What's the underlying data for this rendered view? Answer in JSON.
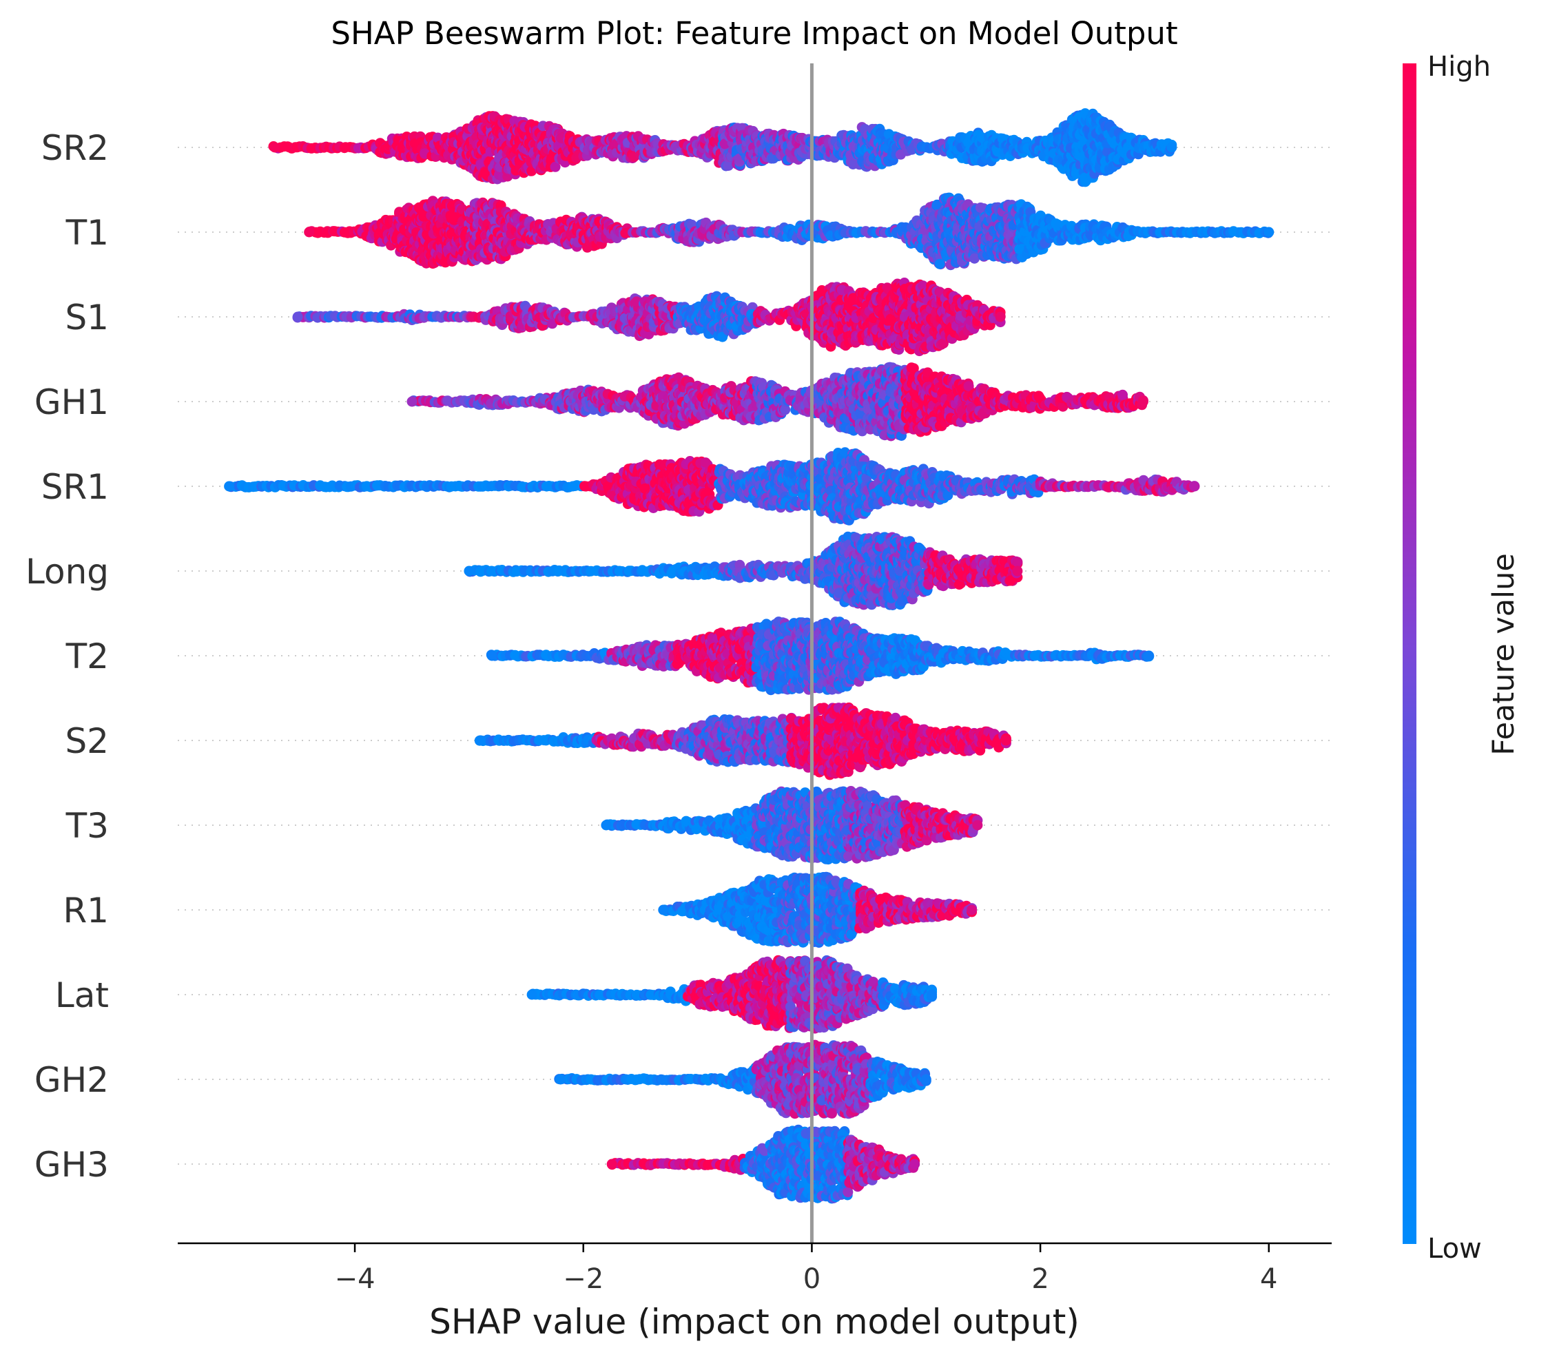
{
  "chart_data": {
    "type": "scatter",
    "title": "SHAP Beeswarm Plot: Feature Impact on Model Output",
    "xlabel": "SHAP value (impact on model output)",
    "ylabel": "",
    "xlim": [
      -5.55,
      4.55
    ],
    "x_ticks": [
      {
        "value": -4,
        "label": "−4"
      },
      {
        "value": -2,
        "label": "−2"
      },
      {
        "value": 0,
        "label": "0"
      },
      {
        "value": 2,
        "label": "2"
      },
      {
        "value": 4,
        "label": "4"
      }
    ],
    "grid": false,
    "colorbar": {
      "label": "Feature value",
      "high_label": "High",
      "low_label": "Low",
      "high_color": "#ff0052",
      "low_color": "#008bfb"
    },
    "zero_line_color": "#999999",
    "features": [
      {
        "name": "SR2",
        "min": -4.7,
        "max": 3.15,
        "segments": [
          {
            "from": -4.7,
            "to": -3.3,
            "value": 0.97
          },
          {
            "from": -3.3,
            "to": -2.0,
            "value": 0.88
          },
          {
            "from": -2.0,
            "to": -0.8,
            "value": 0.7
          },
          {
            "from": -0.8,
            "to": 0.2,
            "value": 0.5
          },
          {
            "from": 0.2,
            "to": 1.2,
            "value": 0.3
          },
          {
            "from": 1.2,
            "to": 3.15,
            "value": 0.04
          }
        ],
        "peaks": [
          [
            -4.6,
            0.02
          ],
          [
            -3.5,
            0.35
          ],
          [
            -2.8,
            0.9
          ],
          [
            -2.3,
            0.55
          ],
          [
            -1.6,
            0.35
          ],
          [
            -0.7,
            0.55
          ],
          [
            -0.2,
            0.35
          ],
          [
            0.5,
            0.6
          ],
          [
            1.5,
            0.45
          ],
          [
            2.4,
            1.0
          ],
          [
            3.0,
            0.15
          ]
        ]
      },
      {
        "name": "T1",
        "min": -4.4,
        "max": 4.0,
        "segments": [
          {
            "from": -4.4,
            "to": -3.0,
            "value": 0.96
          },
          {
            "from": -3.0,
            "to": -1.5,
            "value": 0.8
          },
          {
            "from": -1.5,
            "to": -0.5,
            "value": 0.55
          },
          {
            "from": -0.5,
            "to": 0.5,
            "value": 0.25
          },
          {
            "from": 0.5,
            "to": 1.8,
            "value": 0.35
          },
          {
            "from": 1.8,
            "to": 4.0,
            "value": 0.05
          }
        ],
        "peaks": [
          [
            -4.3,
            0.05
          ],
          [
            -3.6,
            0.3
          ],
          [
            -3.3,
            0.75
          ],
          [
            -2.8,
            0.8
          ],
          [
            -2.0,
            0.45
          ],
          [
            -1.0,
            0.3
          ],
          [
            0.0,
            0.25
          ],
          [
            1.2,
            1.0
          ],
          [
            1.8,
            0.8
          ],
          [
            2.5,
            0.25
          ],
          [
            3.9,
            0.05
          ]
        ]
      },
      {
        "name": "S1",
        "min": -4.5,
        "max": 1.65,
        "segments": [
          {
            "from": -4.5,
            "to": -3.0,
            "value": 0.45
          },
          {
            "from": -3.0,
            "to": -1.2,
            "value": 0.7
          },
          {
            "from": -1.2,
            "to": -0.5,
            "value": 0.3
          },
          {
            "from": -0.5,
            "to": 0.4,
            "value": 0.9
          },
          {
            "from": 0.4,
            "to": 1.65,
            "value": 0.92
          }
        ],
        "peaks": [
          [
            -4.4,
            0.03
          ],
          [
            -3.5,
            0.1
          ],
          [
            -2.5,
            0.35
          ],
          [
            -1.5,
            0.55
          ],
          [
            -0.8,
            0.6
          ],
          [
            0.2,
            0.85
          ],
          [
            0.8,
            1.0
          ],
          [
            1.2,
            0.5
          ],
          [
            1.6,
            0.1
          ]
        ]
      },
      {
        "name": "GH1",
        "min": -3.5,
        "max": 2.9,
        "segments": [
          {
            "from": -3.5,
            "to": -1.8,
            "value": 0.62
          },
          {
            "from": -1.8,
            "to": -0.5,
            "value": 0.72
          },
          {
            "from": -0.5,
            "to": 0.8,
            "value": 0.5
          },
          {
            "from": 0.8,
            "to": 2.9,
            "value": 0.93
          }
        ],
        "peaks": [
          [
            -3.4,
            0.05
          ],
          [
            -2.8,
            0.12
          ],
          [
            -2.0,
            0.35
          ],
          [
            -1.2,
            0.7
          ],
          [
            -0.5,
            0.6
          ],
          [
            0.3,
            0.75
          ],
          [
            0.8,
            1.0
          ],
          [
            1.3,
            0.55
          ],
          [
            2.0,
            0.2
          ],
          [
            2.7,
            0.2
          ]
        ]
      },
      {
        "name": "SR1",
        "min": -5.1,
        "max": 3.35,
        "segments": [
          {
            "from": -5.1,
            "to": -2.0,
            "value": 0.05
          },
          {
            "from": -2.0,
            "to": -0.8,
            "value": 0.95
          },
          {
            "from": -0.8,
            "to": 1.0,
            "value": 0.3
          },
          {
            "from": 1.0,
            "to": 2.0,
            "value": 0.35
          },
          {
            "from": 2.0,
            "to": 3.35,
            "value": 0.72
          }
        ],
        "peaks": [
          [
            -5.0,
            0.03
          ],
          [
            -3.5,
            0.05
          ],
          [
            -2.5,
            0.08
          ],
          [
            -1.5,
            0.55
          ],
          [
            -1.0,
            0.7
          ],
          [
            -0.3,
            0.6
          ],
          [
            0.3,
            1.0
          ],
          [
            1.0,
            0.5
          ],
          [
            1.8,
            0.25
          ],
          [
            3.0,
            0.2
          ]
        ]
      },
      {
        "name": "Long",
        "min": -3.0,
        "max": 1.8,
        "segments": [
          {
            "from": -3.0,
            "to": -0.8,
            "value": 0.05
          },
          {
            "from": -0.8,
            "to": 0.3,
            "value": 0.35
          },
          {
            "from": 0.3,
            "to": 1.0,
            "value": 0.4
          },
          {
            "from": 1.0,
            "to": 1.8,
            "value": 0.9
          }
        ],
        "peaks": [
          [
            -2.9,
            0.03
          ],
          [
            -2.0,
            0.05
          ],
          [
            -1.2,
            0.12
          ],
          [
            -0.6,
            0.2
          ],
          [
            0.0,
            0.15
          ],
          [
            0.45,
            1.0
          ],
          [
            0.7,
            0.75
          ],
          [
            1.2,
            0.35
          ],
          [
            1.7,
            0.3
          ]
        ]
      },
      {
        "name": "T2",
        "min": -2.8,
        "max": 2.95,
        "segments": [
          {
            "from": -2.8,
            "to": -1.8,
            "value": 0.1
          },
          {
            "from": -1.8,
            "to": -1.2,
            "value": 0.6
          },
          {
            "from": -1.2,
            "to": -0.5,
            "value": 0.9
          },
          {
            "from": -0.5,
            "to": 0.5,
            "value": 0.35
          },
          {
            "from": 0.5,
            "to": 2.95,
            "value": 0.12
          }
        ],
        "peaks": [
          [
            -2.7,
            0.05
          ],
          [
            -2.0,
            0.08
          ],
          [
            -1.4,
            0.3
          ],
          [
            -0.8,
            0.6
          ],
          [
            -0.3,
            0.9
          ],
          [
            0.2,
            1.0
          ],
          [
            0.8,
            0.5
          ],
          [
            1.5,
            0.15
          ],
          [
            2.5,
            0.1
          ]
        ]
      },
      {
        "name": "S2",
        "min": -2.9,
        "max": 1.7,
        "segments": [
          {
            "from": -2.9,
            "to": -1.9,
            "value": 0.05
          },
          {
            "from": -1.9,
            "to": -1.2,
            "value": 0.75
          },
          {
            "from": -1.2,
            "to": -0.2,
            "value": 0.45
          },
          {
            "from": -0.2,
            "to": 1.7,
            "value": 0.97
          }
        ],
        "peaks": [
          [
            -2.8,
            0.05
          ],
          [
            -2.1,
            0.1
          ],
          [
            -1.5,
            0.2
          ],
          [
            -0.8,
            0.6
          ],
          [
            -0.3,
            0.5
          ],
          [
            0.2,
            0.95
          ],
          [
            0.7,
            0.6
          ],
          [
            1.3,
            0.25
          ],
          [
            1.65,
            0.15
          ]
        ]
      },
      {
        "name": "T3",
        "min": -1.8,
        "max": 1.45,
        "segments": [
          {
            "from": -1.8,
            "to": -0.5,
            "value": 0.07
          },
          {
            "from": -0.5,
            "to": 0.3,
            "value": 0.3
          },
          {
            "from": 0.3,
            "to": 0.8,
            "value": 0.5
          },
          {
            "from": 0.8,
            "to": 1.45,
            "value": 0.85
          }
        ],
        "peaks": [
          [
            -1.7,
            0.05
          ],
          [
            -1.1,
            0.12
          ],
          [
            -0.5,
            0.45
          ],
          [
            -0.1,
            0.95
          ],
          [
            0.3,
            0.8
          ],
          [
            0.7,
            0.55
          ],
          [
            1.1,
            0.25
          ],
          [
            1.4,
            0.1
          ]
        ]
      },
      {
        "name": "R1",
        "min": -1.3,
        "max": 1.4,
        "segments": [
          {
            "from": -1.3,
            "to": -0.3,
            "value": 0.08
          },
          {
            "from": -0.3,
            "to": 0.4,
            "value": 0.25
          },
          {
            "from": 0.4,
            "to": 1.4,
            "value": 0.85
          }
        ],
        "peaks": [
          [
            -1.25,
            0.05
          ],
          [
            -0.8,
            0.2
          ],
          [
            -0.4,
            0.75
          ],
          [
            0.0,
            0.6
          ],
          [
            0.3,
            0.55
          ],
          [
            0.8,
            0.25
          ],
          [
            1.3,
            0.15
          ]
        ]
      },
      {
        "name": "Lat",
        "min": -2.45,
        "max": 1.05,
        "segments": [
          {
            "from": -2.45,
            "to": -1.1,
            "value": 0.04
          },
          {
            "from": -1.1,
            "to": -0.2,
            "value": 0.88
          },
          {
            "from": -0.2,
            "to": 0.6,
            "value": 0.6
          },
          {
            "from": 0.6,
            "to": 1.05,
            "value": 0.1
          }
        ],
        "peaks": [
          [
            -2.4,
            0.03
          ],
          [
            -1.5,
            0.05
          ],
          [
            -0.9,
            0.3
          ],
          [
            -0.4,
            0.6
          ],
          [
            -0.1,
            1.0
          ],
          [
            0.3,
            0.55
          ],
          [
            0.8,
            0.2
          ],
          [
            1.0,
            0.1
          ]
        ]
      },
      {
        "name": "GH2",
        "min": -2.2,
        "max": 1.0,
        "segments": [
          {
            "from": -2.2,
            "to": -0.5,
            "value": 0.05
          },
          {
            "from": -0.5,
            "to": 0.5,
            "value": 0.62
          },
          {
            "from": 0.5,
            "to": 1.0,
            "value": 0.15
          }
        ],
        "peaks": [
          [
            -2.1,
            0.03
          ],
          [
            -1.2,
            0.05
          ],
          [
            -0.6,
            0.12
          ],
          [
            -0.2,
            0.55
          ],
          [
            0.05,
            1.0
          ],
          [
            0.3,
            0.6
          ],
          [
            0.7,
            0.2
          ],
          [
            0.95,
            0.1
          ]
        ]
      },
      {
        "name": "GH3",
        "min": -1.75,
        "max": 0.9,
        "segments": [
          {
            "from": -1.75,
            "to": -0.6,
            "value": 0.96
          },
          {
            "from": -0.6,
            "to": 0.3,
            "value": 0.2
          },
          {
            "from": 0.3,
            "to": 0.9,
            "value": 0.75
          }
        ],
        "peaks": [
          [
            -1.7,
            0.03
          ],
          [
            -1.0,
            0.08
          ],
          [
            -0.4,
            0.15
          ],
          [
            -0.1,
            1.0
          ],
          [
            0.2,
            0.6
          ],
          [
            0.5,
            0.25
          ],
          [
            0.85,
            0.1
          ]
        ]
      }
    ]
  }
}
